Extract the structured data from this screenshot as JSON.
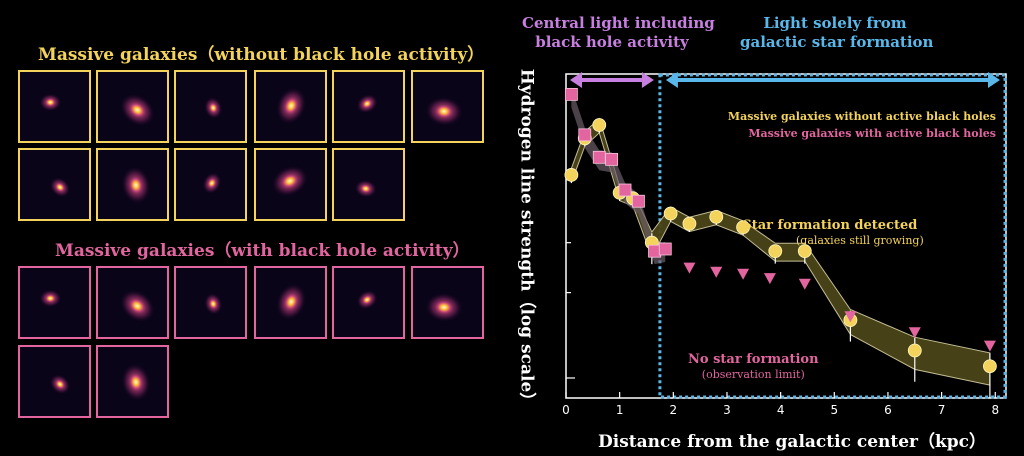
{
  "gallery": {
    "without_title": "Massive galaxies（without black hole activity）",
    "with_title": "Massive galaxies（with black hole activity）",
    "without_count": 11,
    "with_count": 8
  },
  "colors": {
    "without": "#f3d35b",
    "with": "#e2659f",
    "central_region": "#c77fe0",
    "outer_region": "#59b7ea",
    "band_fill": "#4a4518"
  },
  "regions": {
    "central": "Central light including\nblack hole activity",
    "outer": "Light solely from\ngalactic star formation"
  },
  "chart_data": {
    "type": "scatter",
    "xlabel": "Distance from the galactic center（kpc）",
    "ylabel": "Hydrogen line strength（log scale）",
    "xlim": [
      0,
      8.2
    ],
    "x_ticks": [
      0,
      1,
      2,
      3,
      4,
      5,
      6,
      7,
      8
    ],
    "y_scale": "log",
    "y_tick_labels": "none",
    "grid": false,
    "legend_position": "top-right",
    "legend": [
      "Massive galaxies without active black holes",
      "Massive galaxies with active black holes"
    ],
    "central_region_x": [
      0,
      1.75
    ],
    "series": [
      {
        "name": "Massive galaxies without active black holes",
        "marker": "circle",
        "points": [
          {
            "x": 0.1,
            "y": 0.52,
            "err": 0.02
          },
          {
            "x": 0.35,
            "y": 0.7,
            "err": 0.02
          },
          {
            "x": 0.62,
            "y": 0.78,
            "err": 0.02
          },
          {
            "x": 1.0,
            "y": 0.45,
            "err": 0.02
          },
          {
            "x": 1.25,
            "y": 0.43,
            "err": 0.02
          },
          {
            "x": 1.6,
            "y": 0.3,
            "err": 0.05
          },
          {
            "x": 1.95,
            "y": 0.38,
            "err": 0.02
          },
          {
            "x": 2.3,
            "y": 0.35,
            "err": 0.02
          },
          {
            "x": 2.8,
            "y": 0.37,
            "err": 0.02
          },
          {
            "x": 3.3,
            "y": 0.34,
            "err": 0.02
          },
          {
            "x": 3.9,
            "y": 0.28,
            "err": 0.03
          },
          {
            "x": 4.45,
            "y": 0.28,
            "err": 0.03
          },
          {
            "x": 5.3,
            "y": 0.16,
            "err": 0.05
          },
          {
            "x": 6.5,
            "y": 0.125,
            "err": 0.07
          },
          {
            "x": 7.9,
            "y": 0.11,
            "err": 0.07
          }
        ]
      },
      {
        "name": "Massive galaxies with active black holes",
        "marker": "square",
        "points": [
          {
            "x": 0.1,
            "y": 1.0
          },
          {
            "x": 0.35,
            "y": 0.72
          },
          {
            "x": 0.62,
            "y": 0.6
          },
          {
            "x": 0.85,
            "y": 0.59
          },
          {
            "x": 1.1,
            "y": 0.46
          },
          {
            "x": 1.35,
            "y": 0.42
          },
          {
            "x": 1.65,
            "y": 0.28
          },
          {
            "x": 1.85,
            "y": 0.285
          }
        ]
      },
      {
        "name": "Massive galaxies with active black holes (observation limit)",
        "marker": "triangle-down",
        "points": [
          {
            "x": 2.3,
            "y": 0.245
          },
          {
            "x": 2.8,
            "y": 0.237
          },
          {
            "x": 3.3,
            "y": 0.233
          },
          {
            "x": 3.8,
            "y": 0.225
          },
          {
            "x": 4.45,
            "y": 0.215
          },
          {
            "x": 5.3,
            "y": 0.165
          },
          {
            "x": 6.5,
            "y": 0.145
          },
          {
            "x": 7.9,
            "y": 0.13
          }
        ]
      }
    ],
    "annotations": [
      {
        "text": "Star formation detected",
        "sub": "(galaxies still growing)"
      },
      {
        "text": "No star formation",
        "sub": "(observation limit)"
      }
    ]
  }
}
